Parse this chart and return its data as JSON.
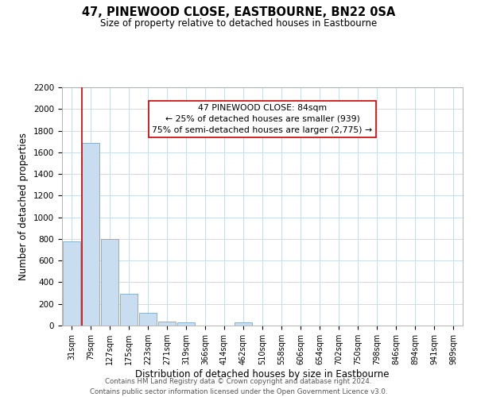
{
  "title": "47, PINEWOOD CLOSE, EASTBOURNE, BN22 0SA",
  "subtitle": "Size of property relative to detached houses in Eastbourne",
  "xlabel": "Distribution of detached houses by size in Eastbourne",
  "ylabel": "Number of detached properties",
  "bar_labels": [
    "31sqm",
    "79sqm",
    "127sqm",
    "175sqm",
    "223sqm",
    "271sqm",
    "319sqm",
    "366sqm",
    "414sqm",
    "462sqm",
    "510sqm",
    "558sqm",
    "606sqm",
    "654sqm",
    "702sqm",
    "750sqm",
    "798sqm",
    "846sqm",
    "894sqm",
    "941sqm",
    "989sqm"
  ],
  "bar_values": [
    780,
    1690,
    800,
    295,
    115,
    40,
    28,
    0,
    0,
    28,
    0,
    0,
    0,
    0,
    0,
    0,
    0,
    0,
    0,
    0,
    0
  ],
  "bar_color": "#c8ddef",
  "bar_edge_color": "#7aaac8",
  "grid_color": "#c8ddef",
  "annotation_text_line1": "47 PINEWOOD CLOSE: 84sqm",
  "annotation_text_line2": "← 25% of detached houses are smaller (939)",
  "annotation_text_line3": "75% of semi-detached houses are larger (2,775) →",
  "annotation_box_facecolor": "#ffffff",
  "annotation_box_edgecolor": "#cc0000",
  "property_line_color": "#cc0000",
  "property_line_x": 0.575,
  "ylim": [
    0,
    2200
  ],
  "yticks": [
    0,
    200,
    400,
    600,
    800,
    1000,
    1200,
    1400,
    1600,
    1800,
    2000,
    2200
  ],
  "footer_line1": "Contains HM Land Registry data © Crown copyright and database right 2024.",
  "footer_line2": "Contains public sector information licensed under the Open Government Licence v3.0."
}
